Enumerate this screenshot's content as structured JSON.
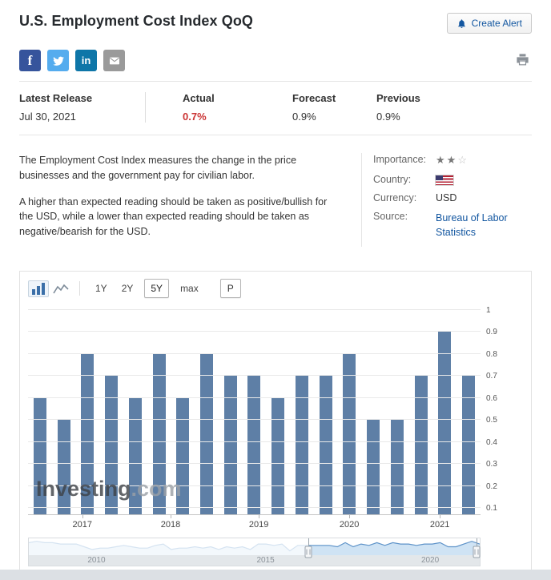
{
  "page_title": "U.S. Employment Cost Index QoQ",
  "header": {
    "create_alert_label": "Create Alert"
  },
  "social": {
    "facebook_label": "f",
    "linkedin_label": "in"
  },
  "release": {
    "latest_label": "Latest Release",
    "latest_date": "Jul 30, 2021",
    "actual_label": "Actual",
    "actual_value": "0.7%",
    "forecast_label": "Forecast",
    "forecast_value": "0.9%",
    "previous_label": "Previous",
    "previous_value": "0.9%"
  },
  "description": {
    "p1": "The Employment Cost Index measures the change in the price businesses and the government pay for civilian labor.",
    "p2": "A higher than expected reading should be taken as positive/bullish for the USD, while a lower than expected reading should be taken as negative/bearish for the USD."
  },
  "details": {
    "importance_label": "Importance:",
    "importance_filled": 2,
    "importance_total": 3,
    "country_label": "Country:",
    "currency_label": "Currency:",
    "currency_value": "USD",
    "source_label": "Source:",
    "source_value": "Bureau of Labor Statistics"
  },
  "toolbar": {
    "ranges": [
      "1Y",
      "2Y",
      "5Y",
      "max"
    ],
    "selected": "5Y",
    "p_label": "P"
  },
  "icons": {
    "create_alert": "bell-icon",
    "share": [
      "facebook-icon",
      "twitter-icon",
      "linkedin-icon",
      "email-icon"
    ],
    "print": "printer-icon",
    "chart_types": [
      "bar-chart-icon",
      "line-chart-icon"
    ],
    "country_flag": "us-flag-icon",
    "importance_filled_glyph": "★",
    "importance_empty_glyph": "☆"
  },
  "colors": {
    "accent_blue": "#1256a0",
    "actual_red": "#cb3434",
    "bar": "#5e7fa6",
    "facebook": "#36549c",
    "twitter": "#55acee",
    "linkedin": "#0e76a8",
    "email_gray": "#9a9a9a"
  },
  "chart_data": {
    "type": "bar",
    "title": "U.S. Employment Cost Index QoQ (%)",
    "values": [
      0.6,
      0.5,
      0.8,
      0.7,
      0.6,
      0.8,
      0.6,
      0.8,
      0.7,
      0.7,
      0.6,
      0.7,
      0.7,
      0.8,
      0.5,
      0.5,
      0.7,
      0.9,
      0.7
    ],
    "y_ticks": [
      "1",
      "0.9",
      "0.8",
      "0.7",
      "0.6",
      "0.5",
      "0.4",
      "0.3",
      "0.2",
      "0.1"
    ],
    "ylim": [
      0.07,
      1.02
    ],
    "grid": true,
    "legend": "none",
    "x_year_labels": [
      "2017",
      "2018",
      "2019",
      "2020",
      "2021"
    ],
    "x_label_positions_pct": [
      12,
      31.5,
      51,
      71,
      91
    ],
    "bar_color": "#5e7fa6",
    "watermark_main": "Investing",
    "watermark_suffix": ".com",
    "navigator": {
      "values": [
        0.8,
        0.9,
        0.8,
        0.8,
        0.7,
        0.7,
        0.7,
        0.5,
        0.3,
        0.4,
        0.4,
        0.5,
        0.6,
        0.5,
        0.4,
        0.4,
        0.6,
        0.7,
        0.3,
        0.4,
        0.4,
        0.5,
        0.4,
        0.5,
        0.3,
        0.5,
        0.4,
        0.5,
        0.3,
        0.7,
        0.7,
        0.6,
        0.7,
        0.2,
        0.6,
        0.6,
        0.6,
        0.6,
        0.6,
        0.5,
        0.8,
        0.5,
        0.7,
        0.6,
        0.8,
        0.6,
        0.8,
        0.7,
        0.7,
        0.6,
        0.7,
        0.7,
        0.8,
        0.5,
        0.5,
        0.7,
        0.9,
        0.7
      ],
      "labels": [
        "2010",
        "2015",
        "2020"
      ],
      "label_positions_pct": [
        15,
        52.5,
        89
      ],
      "selection_start_pct": 62,
      "selection_end_pct": 100
    }
  }
}
